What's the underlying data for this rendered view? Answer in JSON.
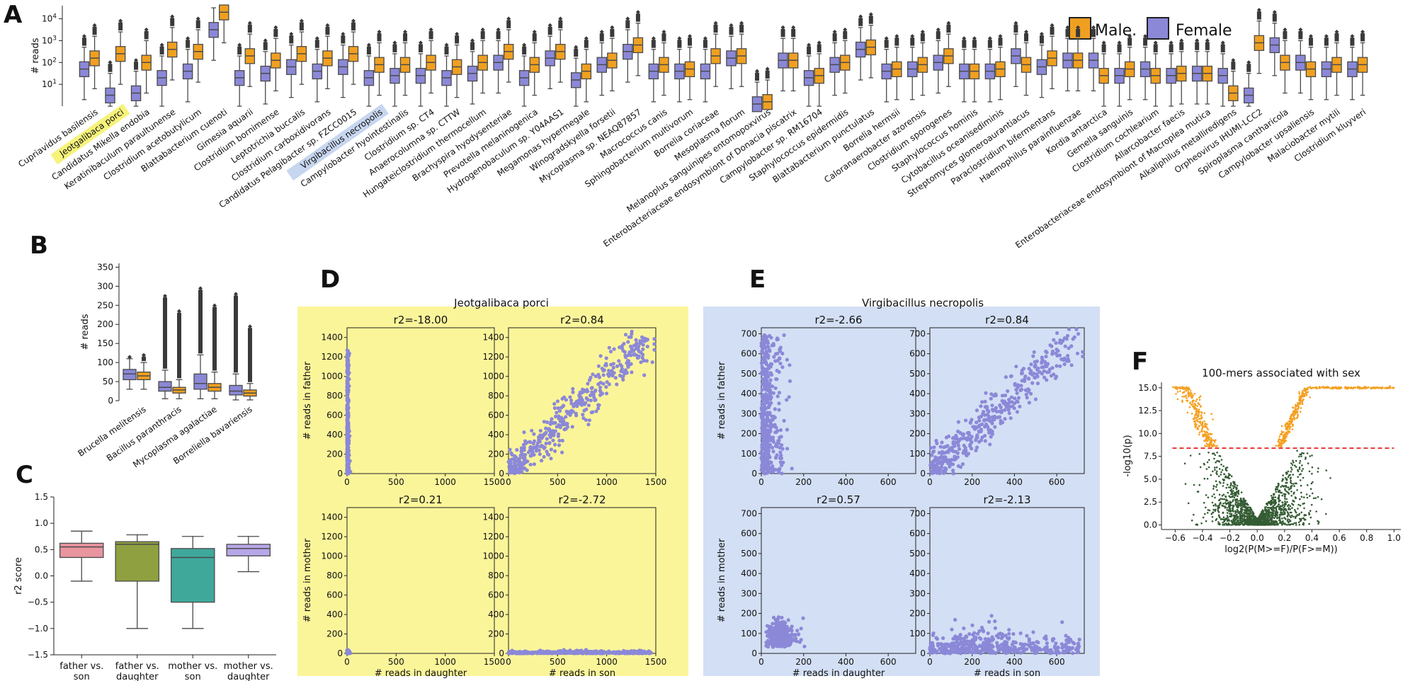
{
  "panels": {
    "A": {
      "letter": "A"
    },
    "B": {
      "letter": "B"
    },
    "C": {
      "letter": "C"
    },
    "D": {
      "letter": "D"
    },
    "E": {
      "letter": "E"
    },
    "F": {
      "letter": "F"
    }
  },
  "legend": {
    "male": "Male.",
    "female": "Female"
  },
  "colors": {
    "male": "#f0a020",
    "female": "#8b88d8",
    "edge": "#4a4a4a",
    "scatter": "#8b88d8",
    "yellow_bg": "#fbf59a",
    "blue_bg": "#d3dff4",
    "volcano_sig": "#f4a021",
    "volcano_ns": "#355c34",
    "threshold": "#e01010",
    "c_colors": [
      "#e8959f",
      "#8fa040",
      "#3fa89a",
      "#b8a7e8"
    ]
  },
  "chart_data": [
    {
      "id": "A",
      "type": "box",
      "ylabel": "# reads",
      "yscale": "log",
      "yticks": [
        "10^1",
        "10^2",
        "10^3",
        "10^4"
      ],
      "ylim_log10": [
        0,
        4.6
      ],
      "highlight_yellow": "Jeotgalibaca porci",
      "highlight_blue": "Virgibacillus necropolis",
      "categories": [
        "Cupriavidus basilensis",
        "Jeotgalibaca porci",
        "Candidatus Mikella endobia",
        "Keratinibaculum paraultunense",
        "Clostridium acetobutylicum",
        "Blattabacterium cuenoti",
        "Gimesia aquarii",
        "Clostridium bornimense",
        "Leptotrichia buccalis",
        "Clostridium carboxidivorans",
        "Candidatus Pelagibacter sp. FZCC0015",
        "Virgibacillus necropolis",
        "Campylobacter hyointestinalis",
        "Clostridium sp. CT4",
        "Anaerocolumna sp. CTTW",
        "Hungateiclostridium thermocellum",
        "Brachyspira hyodysenteriae",
        "Prevotella melaninogenica",
        "Hydrogenobaculum sp. Y04AAS1",
        "Megamonas hypermegale",
        "Winogradskyella forsetii",
        "Mycoplasma sp. NEAQ87857",
        "Macrococcus canis",
        "Sphingobacterium multivorum",
        "Borrelia coriaceae",
        "Mesoplasma florum",
        "Melanoplus sanguinipes entomopoxvirus",
        "Enterobacteriaceae endosymbiont of Donacia piscatrix",
        "Campylobacter sp. RM16704",
        "Staphylococcus epidermidis",
        "Blattabacterium punctulatus",
        "Borrelia hermsii",
        "Caloranaerobacter azorensis",
        "Clostridium sporogenes",
        "Staphylococcus hominis",
        "Cytobacillus oceanisediminis",
        "Streptomyces glomeroaurantiacus",
        "Paraclostridium bifermentans",
        "Haemophilus parainfluenzae",
        "Kordia antarctica",
        "Gemella sanguinis",
        "Clostridium cochlearium",
        "Allarcobacter faecis",
        "Enterobacteriaceae endosymbiont of Macroplea mutica",
        "Alkaliphilus metalliredigens",
        "Orpheovirus IHUMI-LCC2",
        "Spiroplasma cantharicola",
        "Campylobacter upsaliensis",
        "Malaciobacter mytili",
        "Clostridium kluyveri"
      ],
      "female_median_log10": [
        1.7,
        0.5,
        0.6,
        1.3,
        1.6,
        3.5,
        1.3,
        1.5,
        1.8,
        1.6,
        1.8,
        1.3,
        1.4,
        1.4,
        1.3,
        1.5,
        2.0,
        1.3,
        2.2,
        1.2,
        1.9,
        2.5,
        1.6,
        1.6,
        1.6,
        2.2,
        0.1,
        2.1,
        1.3,
        1.9,
        2.6,
        1.6,
        1.7,
        2.0,
        1.6,
        1.6,
        2.3,
        1.8,
        2.1,
        2.1,
        1.4,
        1.7,
        1.4,
        1.5,
        1.4,
        0.5,
        2.8,
        2.0,
        1.7,
        1.7
      ],
      "male_median_log10": [
        2.2,
        2.4,
        2.0,
        2.6,
        2.5,
        4.3,
        2.3,
        2.1,
        2.4,
        2.2,
        2.4,
        1.9,
        1.9,
        2.0,
        1.8,
        2.0,
        2.5,
        1.9,
        2.5,
        1.6,
        2.1,
        2.8,
        1.9,
        1.7,
        2.3,
        2.3,
        0.2,
        2.1,
        1.4,
        2.0,
        2.7,
        1.7,
        1.9,
        2.3,
        1.6,
        1.7,
        1.9,
        2.2,
        2.1,
        1.4,
        1.7,
        1.4,
        1.5,
        1.5,
        0.6,
        2.9,
        2.0,
        1.7,
        1.9,
        1.9
      ]
    },
    {
      "id": "B",
      "type": "box",
      "ylabel": "# reads",
      "ylim": [
        0,
        360
      ],
      "yticks": [
        0,
        50,
        100,
        150,
        200,
        250,
        300,
        350
      ],
      "categories": [
        "Brucella melitensis",
        "Bacillus paranthracis",
        "Mycoplasma agalactiae",
        "Borreliella bavariensis"
      ],
      "female": [
        {
          "q1": 55,
          "median": 70,
          "q3": 82,
          "whislo": 30,
          "whishi": 110
        },
        {
          "q1": 25,
          "median": 35,
          "q3": 50,
          "whislo": 5,
          "whishi": 80
        },
        {
          "q1": 30,
          "median": 45,
          "q3": 70,
          "whislo": 5,
          "whishi": 120
        },
        {
          "q1": 15,
          "median": 25,
          "q3": 40,
          "whislo": 2,
          "whishi": 70
        }
      ],
      "male": [
        {
          "q1": 55,
          "median": 65,
          "q3": 75,
          "whislo": 30,
          "whishi": 100
        },
        {
          "q1": 20,
          "median": 28,
          "q3": 35,
          "whislo": 5,
          "whishi": 55
        },
        {
          "q1": 25,
          "median": 35,
          "q3": 45,
          "whislo": 5,
          "whishi": 75
        },
        {
          "q1": 12,
          "median": 20,
          "q3": 28,
          "whislo": 2,
          "whishi": 45
        }
      ],
      "female_outlier_max": [
        120,
        280,
        300,
        285
      ],
      "male_outlier_max": [
        125,
        240,
        255,
        200
      ]
    },
    {
      "id": "C",
      "type": "box",
      "ylabel": "r2 score",
      "ylim": [
        -1.5,
        1.5
      ],
      "yticks": [
        -1.5,
        -1.0,
        -0.5,
        0.0,
        0.5,
        1.0,
        1.5
      ],
      "categories": [
        "father vs.\nson",
        "father vs.\ndaughter",
        "mother vs.\nson",
        "mother vs.\ndaughter"
      ],
      "boxes": [
        {
          "q1": 0.35,
          "median": 0.55,
          "q3": 0.62,
          "whislo": -0.1,
          "whishi": 0.85
        },
        {
          "q1": -0.1,
          "median": 0.6,
          "q3": 0.65,
          "whislo": -1.0,
          "whishi": 0.78
        },
        {
          "q1": -0.5,
          "median": 0.35,
          "q3": 0.52,
          "whislo": -1.0,
          "whishi": 0.75
        },
        {
          "q1": 0.38,
          "median": 0.52,
          "q3": 0.6,
          "whislo": 0.08,
          "whishi": 0.75
        }
      ]
    },
    {
      "id": "D",
      "type": "scatter",
      "title": "Jeotgalibaca porci",
      "xlim": [
        0,
        1500
      ],
      "ylim": [
        0,
        1500
      ],
      "ticks": [
        0,
        500,
        1000,
        1500
      ],
      "yticks": [
        0,
        200,
        400,
        600,
        800,
        1000,
        1200,
        1400
      ],
      "subplots": [
        {
          "title": "r2=-18.00",
          "ylabel": "# reads in father",
          "xlabel": "",
          "pattern": "vertical"
        },
        {
          "title": "r2=0.84",
          "ylabel": "",
          "xlabel": "",
          "pattern": "diagonal"
        },
        {
          "title": "r2=0.21",
          "ylabel": "# reads in mother",
          "xlabel": "# reads in daughter",
          "pattern": "corner"
        },
        {
          "title": "r2=-2.72",
          "ylabel": "",
          "xlabel": "# reads in son",
          "pattern": "horizontal"
        }
      ]
    },
    {
      "id": "E",
      "type": "scatter",
      "title": "Virgibacillus necropolis",
      "xlim": [
        0,
        730
      ],
      "ylim": [
        0,
        730
      ],
      "ticks": [
        0,
        200,
        400,
        600
      ],
      "yticks": [
        0,
        100,
        200,
        300,
        400,
        500,
        600,
        700
      ],
      "subplots": [
        {
          "title": "r2=-2.66",
          "ylabel": "# reads in father",
          "xlabel": "",
          "pattern": "vertical"
        },
        {
          "title": "r2=0.84",
          "ylabel": "",
          "xlabel": "",
          "pattern": "diagonal"
        },
        {
          "title": "r2=0.57",
          "ylabel": "# reads in mother",
          "xlabel": "# reads in daughter",
          "pattern": "cluster"
        },
        {
          "title": "r2=-2.13",
          "ylabel": "",
          "xlabel": "# reads in son",
          "pattern": "horizontal"
        }
      ]
    },
    {
      "id": "F",
      "type": "scatter",
      "title": "100-mers associated with sex",
      "xlabel": "log2(P(M>=F)/P(F>=M))",
      "ylabel": "-log10(p)",
      "xlim": [
        -0.7,
        1.05
      ],
      "ylim": [
        -0.5,
        15.6
      ],
      "xticks": [
        -0.6,
        -0.4,
        -0.2,
        0.0,
        0.2,
        0.4,
        0.6,
        0.8,
        1.0
      ],
      "yticks": [
        0.0,
        2.5,
        5.0,
        7.5,
        10.0,
        12.5,
        15.0
      ],
      "threshold": 8.4
    }
  ]
}
